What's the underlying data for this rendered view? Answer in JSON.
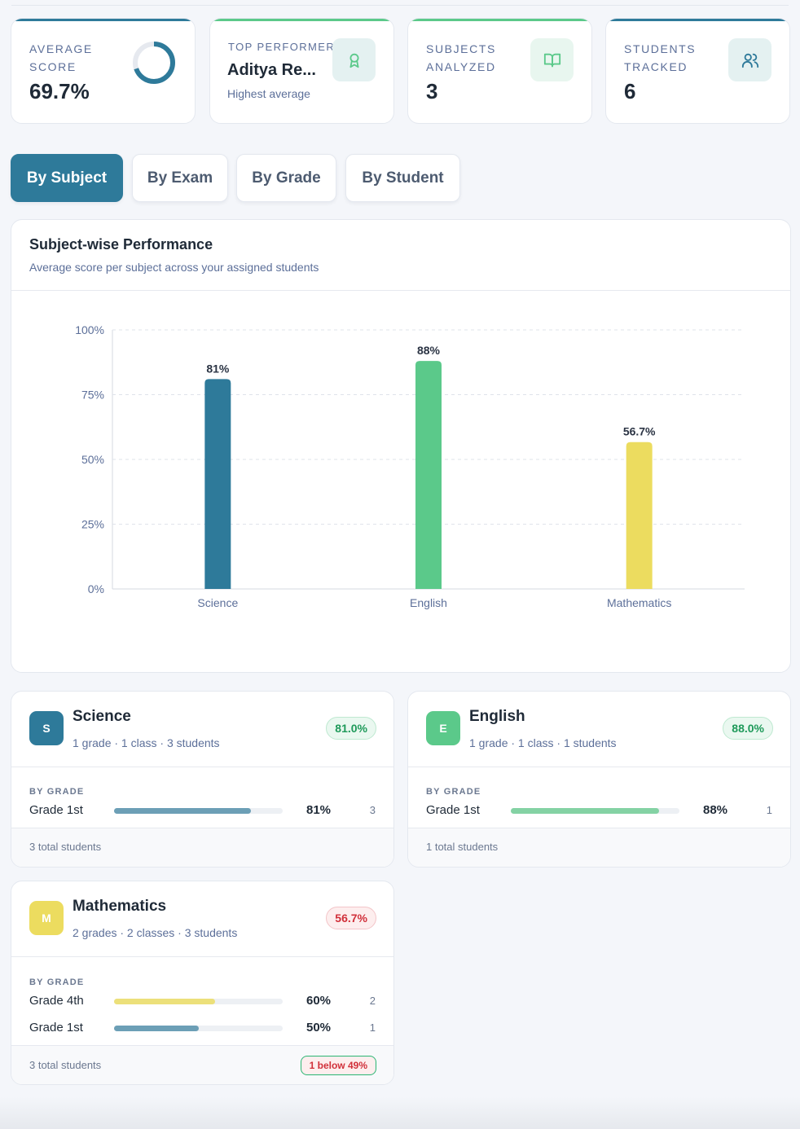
{
  "stats": {
    "average": {
      "label": "AVERAGE SCORE",
      "value": "69.7%",
      "percent": 69.7
    },
    "top": {
      "label": "TOP PERFORMER",
      "name": "Aditya Re...",
      "sub": "Highest average"
    },
    "subjects": {
      "label": "SUBJECTS ANALYZED",
      "value": "3"
    },
    "students": {
      "label": "STUDENTS TRACKED",
      "value": "6"
    }
  },
  "tabs": [
    {
      "label": "By Subject",
      "active": true
    },
    {
      "label": "By Exam",
      "active": false
    },
    {
      "label": "By Grade",
      "active": false
    },
    {
      "label": "By Student",
      "active": false
    }
  ],
  "chart_card": {
    "title": "Subject-wise Performance",
    "subtitle": "Average score per subject across your assigned students"
  },
  "chart_data": {
    "type": "bar",
    "categories": [
      "Science",
      "English",
      "Mathematics"
    ],
    "values": [
      81,
      88,
      56.7
    ],
    "labels": [
      "81%",
      "88%",
      "56.7%"
    ],
    "colors": [
      "#2e7a9a",
      "#5bc98a",
      "#ecdc5f"
    ],
    "yticks": [
      "0%",
      "25%",
      "50%",
      "75%",
      "100%"
    ],
    "ylim": [
      0,
      100
    ],
    "grid": true
  },
  "subjects": [
    {
      "initial": "S",
      "name": "Science",
      "meta": "1 grade · 1 class · 3 students",
      "badge": "81.0%",
      "color": "#2e7a9a",
      "bygrade": "BY GRADE",
      "grades": [
        {
          "label": "Grade 1st",
          "pct": "81%",
          "value": 81,
          "count": "3",
          "fill": "#6c9fb6"
        }
      ],
      "footer": "3 total students"
    },
    {
      "initial": "E",
      "name": "English",
      "meta": "1 grade · 1 class · 1 students",
      "badge": "88.0%",
      "color": "#5bc98a",
      "bygrade": "BY GRADE",
      "grades": [
        {
          "label": "Grade 1st",
          "pct": "88%",
          "value": 88,
          "count": "1",
          "fill": "#84d2a4"
        }
      ],
      "footer": "1 total students"
    },
    {
      "initial": "M",
      "name": "Mathematics",
      "meta": "2 grades · 2 classes · 3 students",
      "badge": "56.7%",
      "color": "#ecdc5f",
      "bygrade": "BY GRADE",
      "grades": [
        {
          "label": "Grade 4th",
          "pct": "60%",
          "value": 60,
          "count": "2",
          "fill": "#ece07a"
        },
        {
          "label": "Grade 1st",
          "pct": "50%",
          "value": 50,
          "count": "1",
          "fill": "#6c9fb6"
        }
      ],
      "footer": "3 total students",
      "warning": "1 below 49%"
    }
  ]
}
